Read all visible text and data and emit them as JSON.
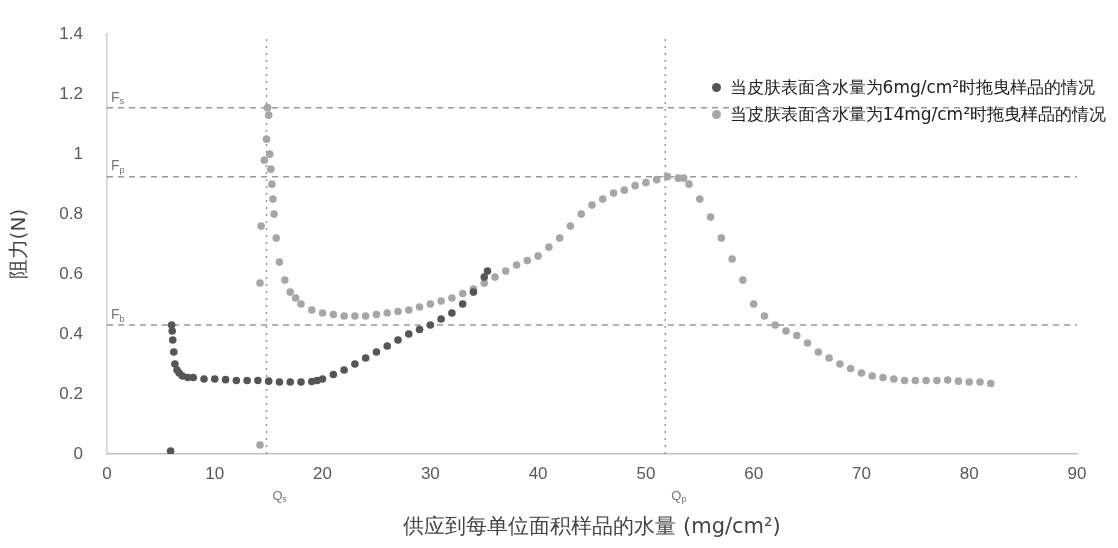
{
  "chart_data": {
    "type": "scatter",
    "xlabel": "供应到每单位面积样品的水量 (mg/cm²)",
    "ylabel": "阻力(N)",
    "xlim": [
      0,
      90
    ],
    "xticks": [
      0,
      10,
      20,
      30,
      40,
      50,
      60,
      70,
      80,
      90
    ],
    "ylim": [
      0,
      1.4
    ],
    "yticks": [
      0,
      0.2,
      0.4,
      0.6,
      0.8,
      1,
      1.2,
      1.4
    ],
    "grid": false,
    "legend": "top right",
    "marker": "circle",
    "series": [
      {
        "name": "当皮肤表面含水量为6mg/cm²时拖曳样品的情况",
        "color": "#555555",
        "x": [
          5.9,
          6,
          6.05,
          6.1,
          6.2,
          6.3,
          6.5,
          6.7,
          7,
          7.5,
          8,
          9,
          10,
          11,
          12,
          13,
          14,
          15,
          16,
          17,
          18,
          19,
          19.5,
          20,
          21,
          22,
          23,
          24,
          25,
          26,
          27,
          28,
          29,
          30,
          31,
          32,
          33,
          34,
          35,
          35.3
        ],
        "values": [
          0.01,
          0.43,
          0.41,
          0.38,
          0.34,
          0.3,
          0.28,
          0.27,
          0.26,
          0.255,
          0.255,
          0.25,
          0.25,
          0.248,
          0.245,
          0.245,
          0.245,
          0.243,
          0.24,
          0.24,
          0.24,
          0.242,
          0.245,
          0.25,
          0.265,
          0.28,
          0.3,
          0.32,
          0.34,
          0.36,
          0.38,
          0.4,
          0.415,
          0.43,
          0.45,
          0.47,
          0.5,
          0.54,
          0.59,
          0.61
        ]
      },
      {
        "name": "当皮肤表面含水量为14mg/cm²时拖曳样品的情况",
        "color": "#a6a6a6",
        "x": [
          14.2,
          14.2,
          14.3,
          14.6,
          14.9,
          15,
          14.8,
          15.1,
          15.2,
          15.3,
          15.4,
          15.5,
          15.7,
          16,
          16.5,
          17,
          17.5,
          18,
          19,
          20,
          21,
          22,
          23,
          24,
          25,
          26,
          27,
          28,
          29,
          30,
          31,
          32,
          33,
          34,
          35,
          36,
          37,
          38,
          39,
          40,
          41,
          42,
          43,
          44,
          45,
          46,
          47,
          48,
          49,
          50,
          51,
          52,
          53,
          53.5,
          54,
          55,
          56,
          57,
          58,
          59,
          60,
          61,
          62,
          63,
          64,
          65,
          66,
          67,
          68,
          69,
          70,
          71,
          72,
          73,
          74,
          75,
          76,
          77,
          78,
          79,
          80,
          81,
          82
        ],
        "values": [
          0.03,
          0.57,
          0.76,
          0.98,
          1.155,
          1.13,
          1.05,
          1.0,
          0.95,
          0.9,
          0.85,
          0.8,
          0.72,
          0.64,
          0.58,
          0.54,
          0.52,
          0.5,
          0.48,
          0.47,
          0.465,
          0.46,
          0.46,
          0.46,
          0.465,
          0.47,
          0.475,
          0.48,
          0.49,
          0.5,
          0.51,
          0.52,
          0.535,
          0.55,
          0.57,
          0.59,
          0.61,
          0.63,
          0.645,
          0.66,
          0.69,
          0.72,
          0.76,
          0.8,
          0.83,
          0.85,
          0.87,
          0.88,
          0.895,
          0.905,
          0.915,
          0.925,
          0.92,
          0.92,
          0.9,
          0.85,
          0.79,
          0.72,
          0.65,
          0.58,
          0.5,
          0.46,
          0.43,
          0.41,
          0.395,
          0.37,
          0.34,
          0.32,
          0.3,
          0.285,
          0.27,
          0.26,
          0.255,
          0.25,
          0.245,
          0.245,
          0.245,
          0.245,
          0.247,
          0.243,
          0.24,
          0.24,
          0.235
        ]
      }
    ],
    "ref_lines": [
      {
        "axis": "y",
        "value": 1.155,
        "label": "F$_{s}$",
        "color": "#999999",
        "line_style": "dashed"
      },
      {
        "axis": "y",
        "value": 0.925,
        "label": "F$_{p}$",
        "color": "#999999",
        "line_style": "dashed"
      },
      {
        "axis": "y",
        "value": 0.43,
        "label": "F$_{b}$",
        "color": "#999999",
        "line_style": "dashed"
      },
      {
        "axis": "x",
        "value": 14.8,
        "label": "Q$_{s}$",
        "color": "#999999",
        "line_style": "dotted"
      },
      {
        "axis": "x",
        "value": 51.8,
        "label": "Q$_{p}$",
        "color": "#999999",
        "line_style": "dotted"
      }
    ]
  }
}
